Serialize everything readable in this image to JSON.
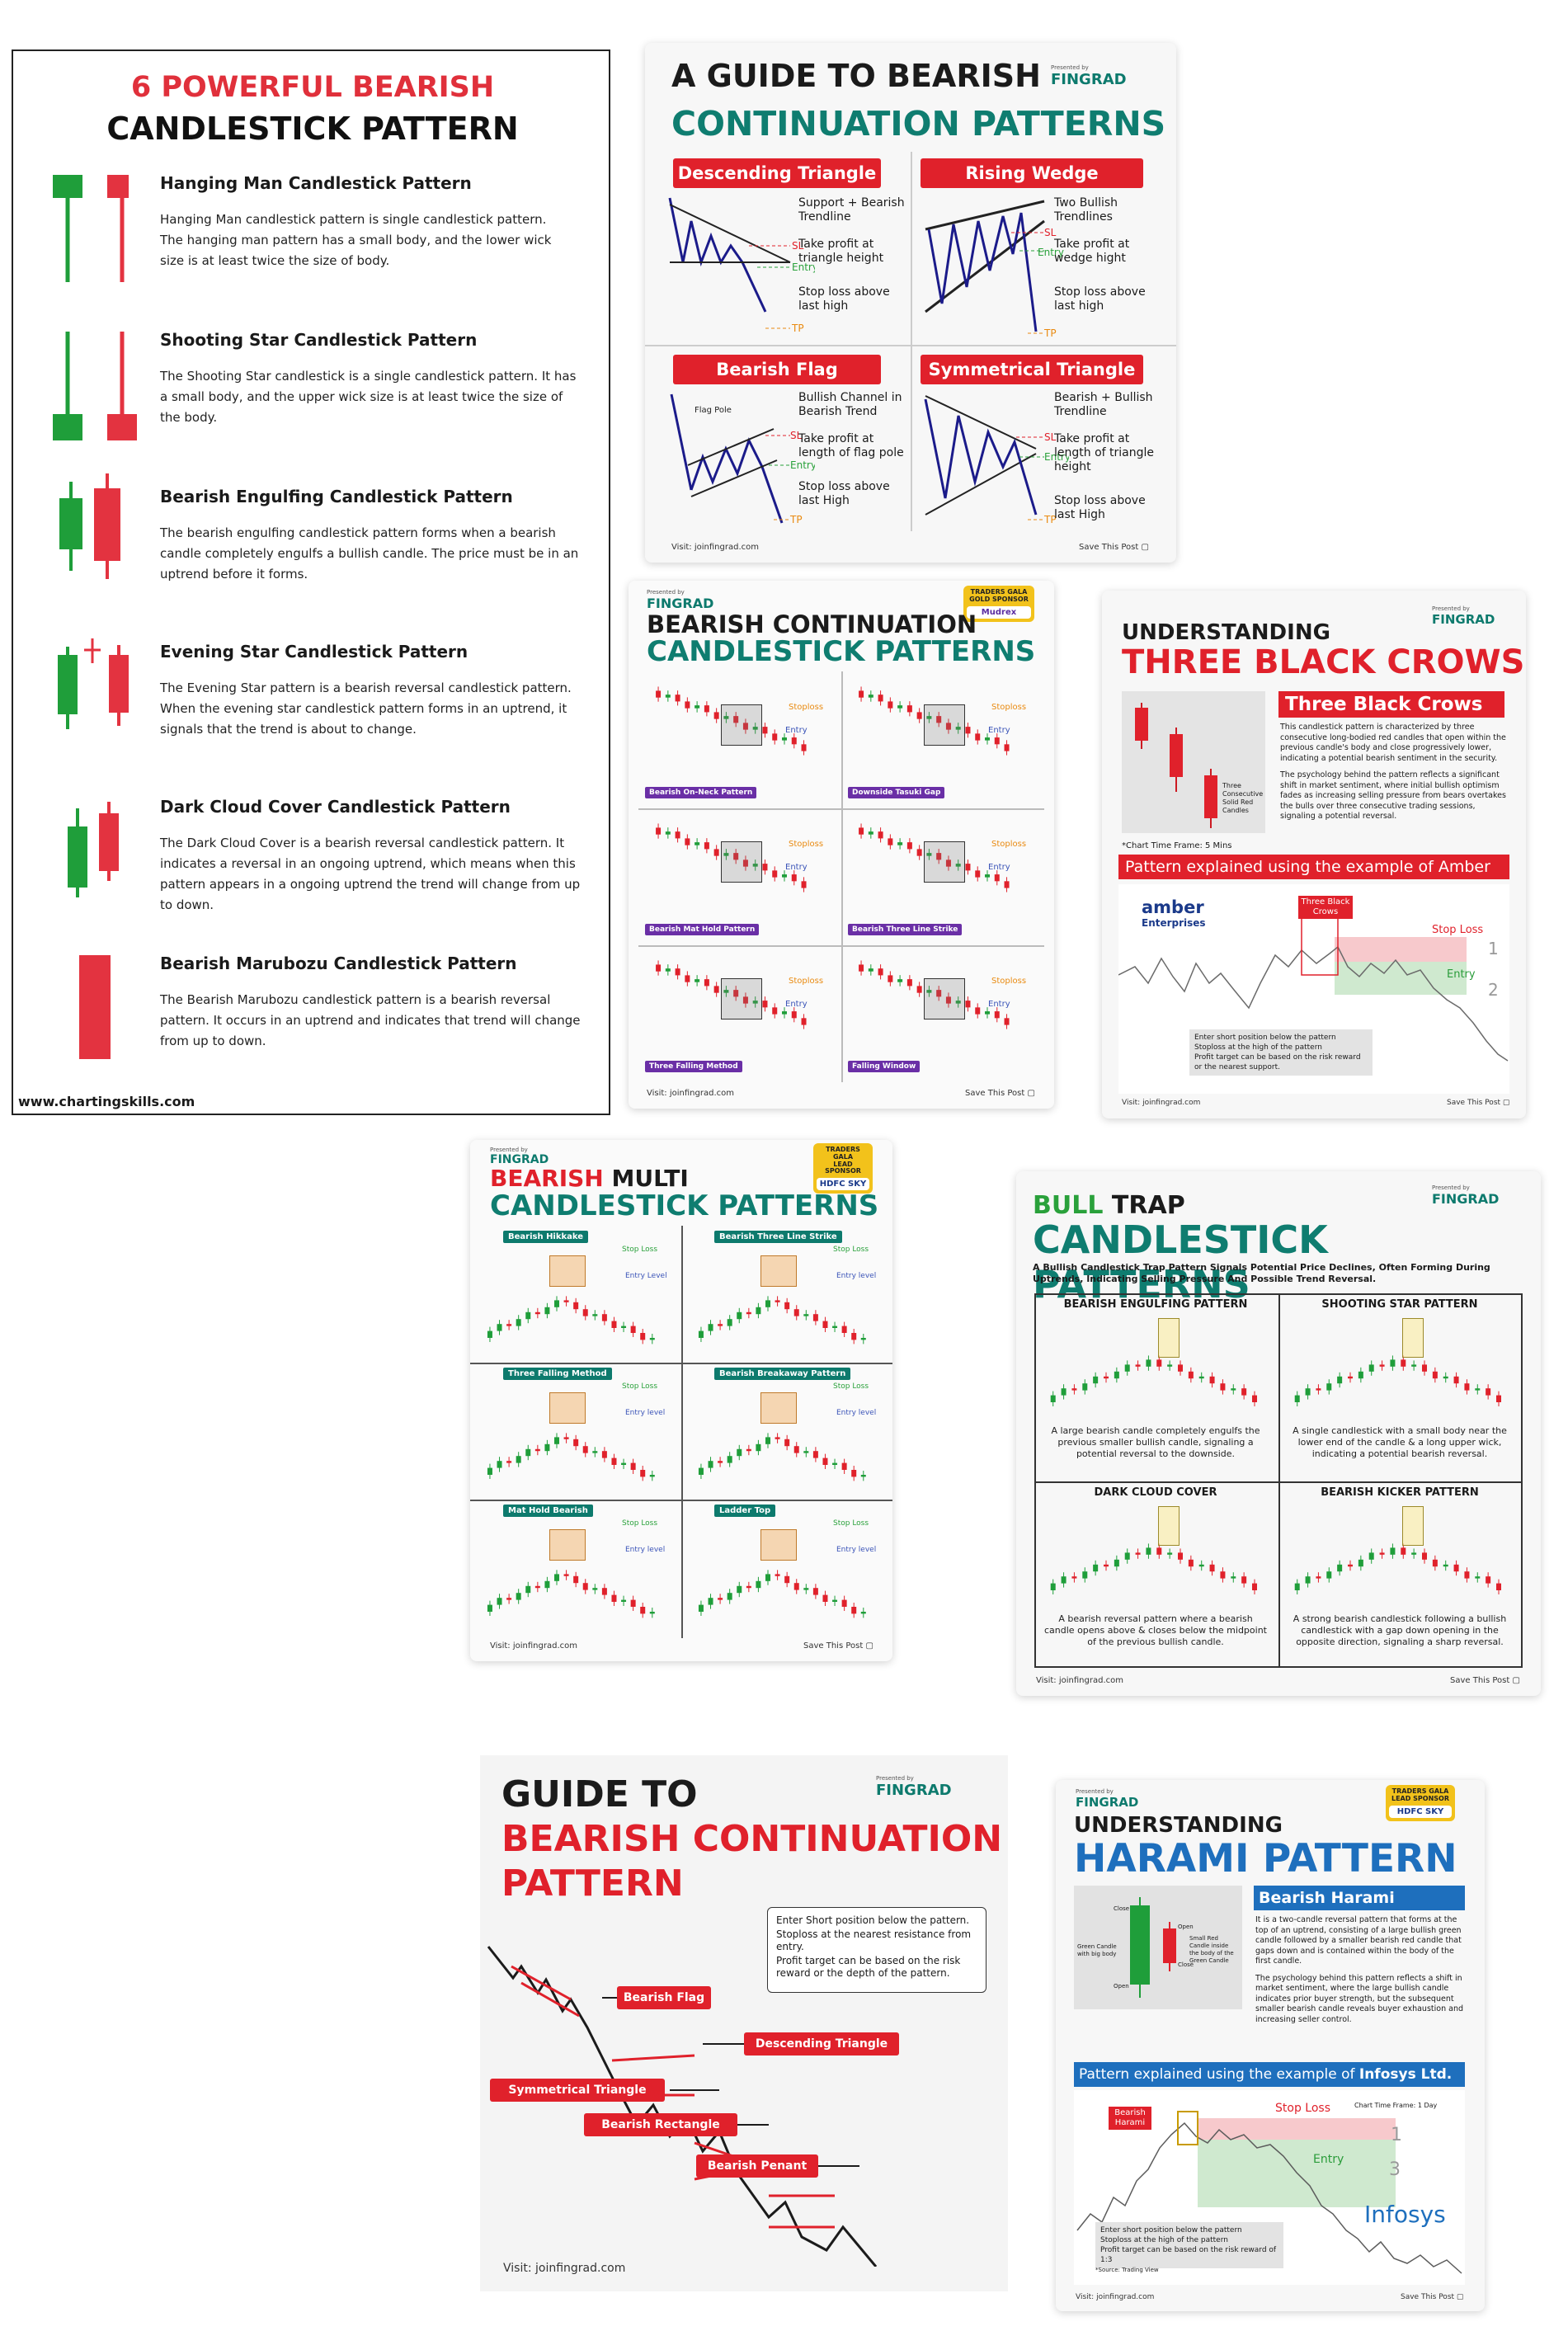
{
  "card1": {
    "title_line1": "6 POWERFUL BEARISH",
    "title_line2": "CANDLESTICK PATTERN",
    "items": [
      {
        "heading": "Hanging Man Candlestick Pattern",
        "text": "Hanging Man candlestick pattern is single candlestick pattern. The hanging man pattern has a small body, and the lower wick size is at least twice the size of body."
      },
      {
        "heading": "Shooting Star Candlestick Pattern",
        "text": "The Shooting Star candlestick is a single candlestick pattern. It has a small body, and the upper wick size is at least twice the size of the body."
      },
      {
        "heading": "Bearish Engulfing Candlestick Pattern",
        "text": "The bearish engulfing candlestick pattern forms when a bearish candle completely engulfs a bullish candle. The price must be in an uptrend before it forms."
      },
      {
        "heading": "Evening Star Candlestick Pattern",
        "text": "The Evening Star pattern is a bearish reversal candlestick pattern. When the evening star candlestick pattern forms in an uptrend, it signals that the trend is about to change."
      },
      {
        "heading": "Dark Cloud Cover Candlestick Pattern",
        "text": "The Dark Cloud Cover is a bearish reversal candlestick pattern. It indicates a reversal in an ongoing uptrend, which means when this pattern appears in a ongoing uptrend the trend will change from up to down."
      },
      {
        "heading": "Bearish Marubozu Candlestick Pattern",
        "text": "The Bearish Marubozu candlestick pattern is a bearish reversal pattern. It occurs in an uptrend and indicates that trend will change from up to down."
      }
    ],
    "website": "www.chartingskills.com"
  },
  "card2": {
    "title_line1": "A GUIDE TO BEARISH",
    "title_line2": "CONTINUATION PATTERNS",
    "presented_by": "Presented by",
    "logo": "FINGRAD",
    "panels": [
      {
        "label": "Descending Triangle",
        "bullets": [
          "Support + Bearish Trendline",
          "Take profit at triangle height",
          "Stop loss above last high"
        ]
      },
      {
        "label": "Rising Wedge",
        "bullets": [
          "Two Bullish Trendlines",
          "Take profit at wedge hight",
          "Stop loss above last high"
        ]
      },
      {
        "label": "Bearish Flag",
        "bullets": [
          "Bullish Channel in Bearish Trend",
          "Take profit at length of flag pole",
          "Stop loss above last High"
        ]
      },
      {
        "label": "Symmetrical Triangle",
        "bullets": [
          "Bearish + Bullish Trendline",
          "Take profit at length of triangle height",
          "Stop loss above last High"
        ]
      }
    ],
    "marks": {
      "sl": "SL",
      "entry": "Entry",
      "tp": "TP",
      "flag_pole": "Flag Pole"
    },
    "visit": "Visit: joinfingrad.com",
    "save": "Save This Post"
  },
  "card3": {
    "presented_by": "Presented by",
    "logo": "FINGRAD",
    "sponsor_line1": "TRADERS GALA",
    "sponsor_line2": "GOLD SPONSOR",
    "sponsor_brand": "Mudrex",
    "title_line1": "BEARISH CONTINUATION",
    "title_line2": "CANDLESTICK PATTERNS",
    "panels": [
      "Bearish On-Neck Pattern",
      "Downside Tasuki Gap",
      "Bearish Mat Hold Pattern",
      "Bearish Three Line Strike",
      "Three Falling Method",
      "Falling Window"
    ],
    "stoploss": "Stoploss",
    "entry": "Entry",
    "visit": "Visit: joinfingrad.com",
    "save": "Save This Post"
  },
  "card4": {
    "presented_by": "Presented by",
    "logo": "FINGRAD",
    "title_line1": "UNDERSTANDING",
    "title_line2": "THREE BLACK CROWS",
    "box_title": "Three Black Crows",
    "candle_label": "Three Consecutive Solid Red Candles",
    "bullets": [
      "This candlestick pattern is characterized by three consecutive long-bodied red candles that open within the previous candle's body and close progressively lower, indicating a potential bearish sentiment in the security.",
      "The psychology behind the pattern reflects a significant shift in market sentiment, where initial bullish optimism fades as increasing selling pressure from bears overtakes the bulls over three consecutive trading sessions, signaling a potential reversal."
    ],
    "timeframe": "*Chart Time Frame: 5 Mins",
    "example": "Pattern explained using the example of Amber Ent.",
    "company": "amber",
    "company_sub": "Enterprises",
    "chart_tag": "Three Black Crows",
    "stop_loss": "Stop Loss",
    "entry": "Entry",
    "num1": "1",
    "num2": "2",
    "notes": [
      "Enter short position below the pattern",
      "Stoploss at the high of the pattern",
      "Profit target can be based on the risk reward or the nearest support."
    ],
    "visit": "Visit: joinfingrad.com",
    "save": "Save This Post"
  },
  "card5": {
    "presented_by": "Presented by",
    "logo": "FINGRAD",
    "sponsor_line1": "TRADERS GALA",
    "sponsor_line2": "LEAD SPONSOR",
    "sponsor_brand": "HDFC SKY",
    "title_line1a": "BEARISH",
    "title_line1b": "MULTI",
    "title_line2": "CANDLESTICK PATTERNS",
    "panels": [
      "Bearish Hikkake",
      "Bearish Three Line Strike",
      "Three Falling Method",
      "Bearish Breakaway Pattern",
      "Mat Hold Bearish",
      "Ladder Top"
    ],
    "stop_loss": "Stop Loss",
    "entry_level_a": "Entry Level",
    "entry_level_b": "Entry level",
    "visit": "Visit: joinfingrad.com",
    "save": "Save This Post"
  },
  "card6": {
    "presented_by": "Presented by",
    "logo": "FINGRAD",
    "title_line1a": "BULL",
    "title_line1b": "TRAP",
    "title_line2": "CANDLESTICK PATTERNS",
    "subtitle": "A Bullish Candlestick Trap Pattern Signals Potential Price Declines, Often Forming During Uptrends, Indicating Selling Pressure And Possible Trend Reversal.",
    "panels": [
      {
        "label": "BEARISH ENGULFING PATTERN",
        "caption": "A large bearish candle completely engulfs the previous smaller bullish candle, signaling a potential reversal to the downside."
      },
      {
        "label": "SHOOTING STAR PATTERN",
        "caption": "A single candlestick with a small body near the lower end of the candle & a long upper wick, indicating a potential bearish reversal."
      },
      {
        "label": "DARK CLOUD COVER",
        "caption": "A bearish reversal pattern where a bearish candle opens above & closes below the midpoint of the previous bullish candle."
      },
      {
        "label": "BEARISH KICKER PATTERN",
        "caption": "A strong bearish candlestick following a bullish candlestick with a gap down opening in the opposite direction, signaling a sharp reversal."
      }
    ],
    "visit": "Visit: joinfingrad.com",
    "save": "Save This Post"
  },
  "card7": {
    "presented_by": "Presented by",
    "logo": "FINGRAD",
    "title_line1": "GUIDE TO",
    "title_line2": "BEARISH CONTINUATION",
    "title_line3": "PATTERN",
    "notes": [
      "Enter Short position below the pattern.",
      "Stoploss at the nearest resistance from entry.",
      "Profit target can be based on the risk reward or the depth of the pattern."
    ],
    "labels": [
      "Bearish Flag",
      "Descending Triangle",
      "Symmetrical Triangle",
      "Bearish Rectangle",
      "Bearish Penant"
    ],
    "visit": "Visit: joinfingrad.com"
  },
  "card8": {
    "presented_by": "Presented by",
    "logo": "FINGRAD",
    "sponsor_line1": "TRADERS GALA",
    "sponsor_line2": "LEAD SPONSOR",
    "sponsor_brand": "HDFC SKY",
    "title_line1": "UNDERSTANDING",
    "title_line2": "HARAMI PATTERN",
    "box_title": "Bearish Harami Pattern",
    "diagram": {
      "close_l": "Close",
      "open_l": "Open",
      "open_r": "Open",
      "close_r": "Close",
      "left_label": "Green Candle with big body",
      "right_label": "Small Red Candle inside the body of the Green Candle"
    },
    "bullets": [
      "It is a two-candle reversal pattern that forms at the top of an uptrend, consisting of a large bullish green candle followed by a smaller bearish red candle that gaps down and is contained within the body of the first candle.",
      "The psychology behind this pattern reflects a shift in market sentiment, where the large bullish candle indicates prior buyer strength, but the subsequent smaller bearish candle reveals buyer exhaustion and increasing seller control."
    ],
    "example_a": "Pattern explained using the example of",
    "example_b": "Infosys Ltd.",
    "chart_tag": "Bearish Harami",
    "stop_loss": "Stop Loss",
    "timeframe": "Chart Time Frame: 1 Day",
    "entry": "Entry",
    "num1": "1",
    "num3": "3",
    "company": "Infosys",
    "notes": [
      "Enter short position below the pattern",
      "Stoploss at the high of the pattern",
      "Profit target can be based on the risk reward of 1:3"
    ],
    "source": "*Source: Trading View",
    "visit": "Visit: joinfingrad.com",
    "save": "Save This Post"
  }
}
